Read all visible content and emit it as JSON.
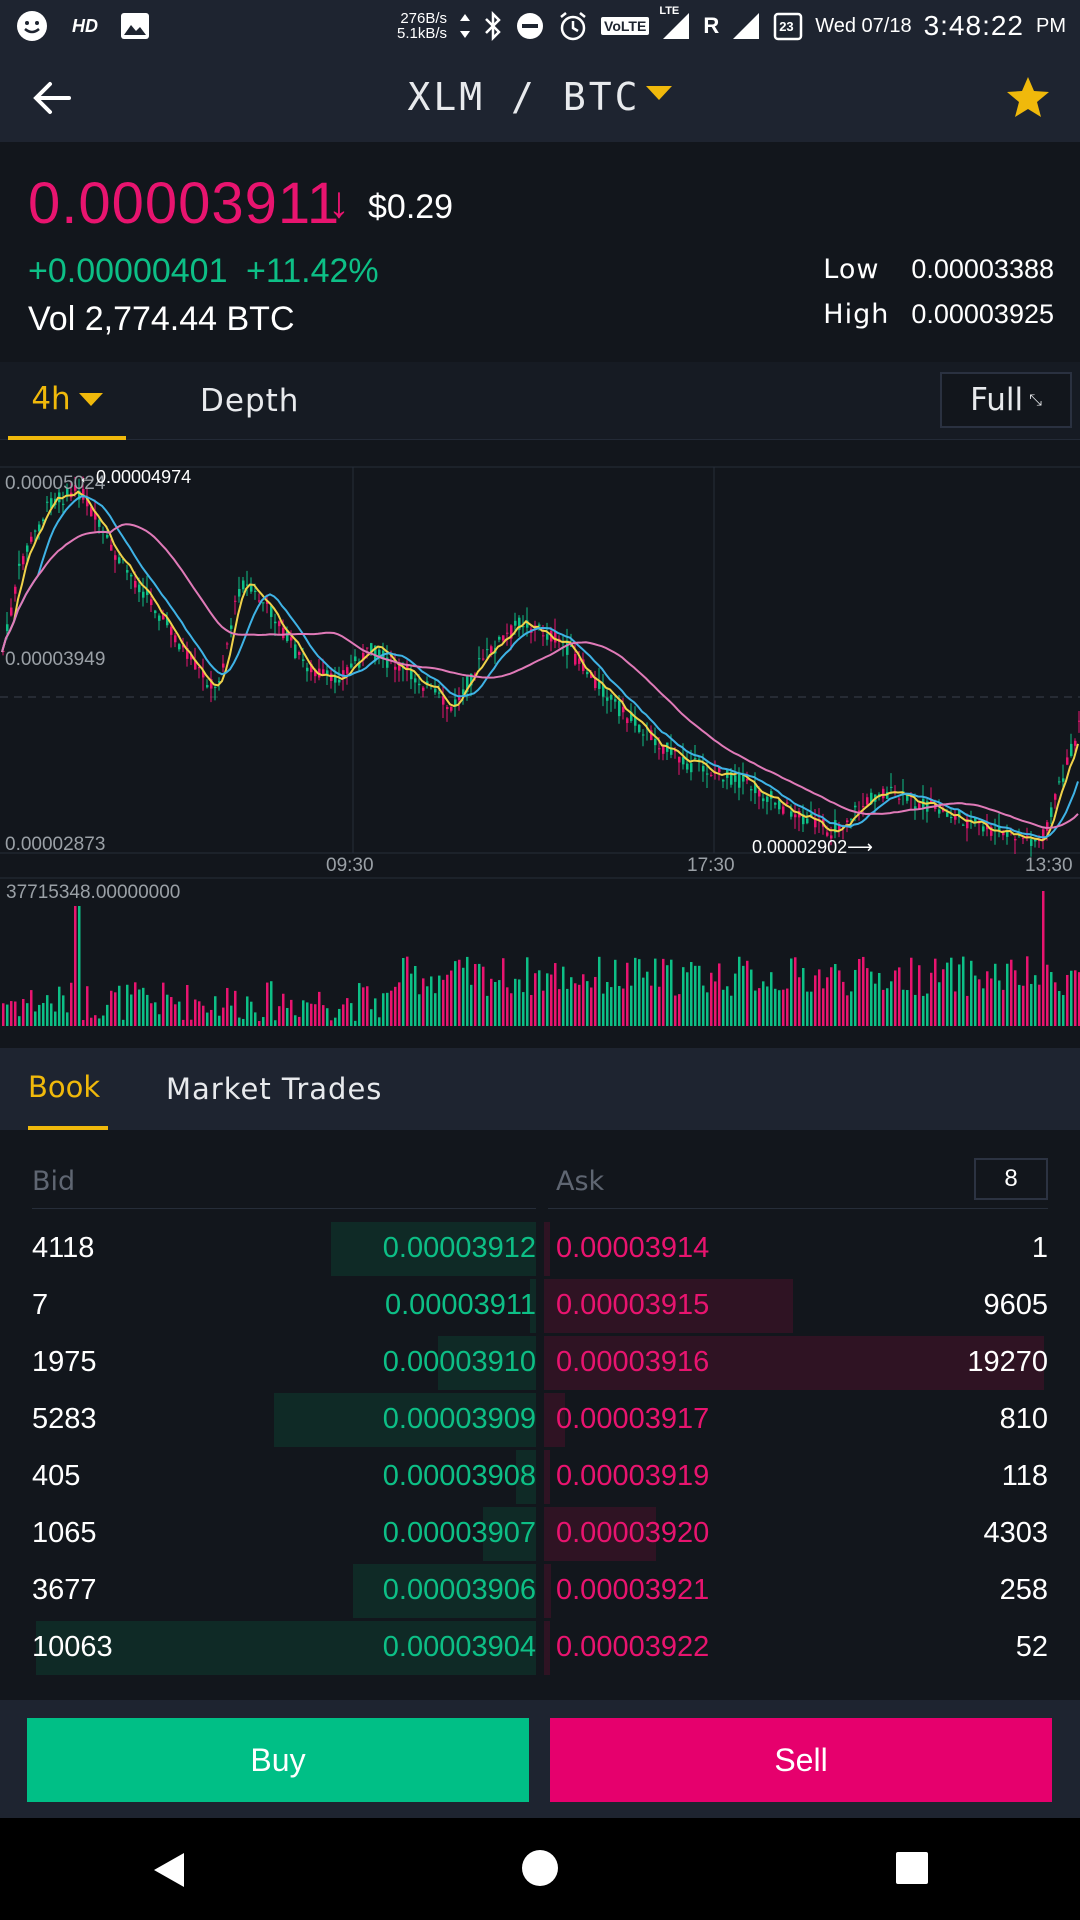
{
  "status_bar": {
    "hd_label": "HD",
    "net_up": "276B/s",
    "net_down": "5.1kB/s",
    "volte": "VoLTE",
    "lte": "LTE",
    "roaming": "R",
    "calendar_day": "23",
    "date": "Wed 07/18",
    "time": "3:48:22",
    "ampm": "PM"
  },
  "header": {
    "pair": "XLM / BTC",
    "favorite": true,
    "icons": [
      "arrow-left-icon",
      "chevron-down-icon",
      "star-icon"
    ]
  },
  "ticker": {
    "price": "0.00003911",
    "usd": "$0.29",
    "change": "+0.00000401",
    "change_pct": "+11.42%",
    "volume": "Vol 2,774.44 BTC",
    "low_label": "Low",
    "low": "0.00003388",
    "high_label": "High",
    "high": "0.00003925"
  },
  "chart_tabs": {
    "interval": "4h",
    "depth": "Depth",
    "full": "Full"
  },
  "chart": {
    "y_top": "0.00005024",
    "y_mid": "0.00003949",
    "y_bottom": "0.00002873",
    "max_marker": "0.00004974",
    "min_marker": "0.00002902",
    "x_labels": [
      "09:30",
      "17:30",
      "13:30"
    ],
    "volume_max": "37715348.00000000",
    "colors": {
      "up": "#0dbf86",
      "down": "#e8146f",
      "ma1": "#f0d24a",
      "ma2": "#3fb3e6",
      "ma3": "#e07ab8"
    }
  },
  "book_tabs": {
    "book": "Book",
    "trades": "Market Trades"
  },
  "book": {
    "bid_label": "Bid",
    "ask_label": "Ask",
    "depth": "8",
    "rows": [
      {
        "bid_qty": "4118",
        "bid_price": "0.00003912",
        "ask_price": "0.00003914",
        "ask_qty": "1"
      },
      {
        "bid_qty": "7",
        "bid_price": "0.00003911",
        "ask_price": "0.00003915",
        "ask_qty": "9605"
      },
      {
        "bid_qty": "1975",
        "bid_price": "0.00003910",
        "ask_price": "0.00003916",
        "ask_qty": "19270"
      },
      {
        "bid_qty": "5283",
        "bid_price": "0.00003909",
        "ask_price": "0.00003917",
        "ask_qty": "810"
      },
      {
        "bid_qty": "405",
        "bid_price": "0.00003908",
        "ask_price": "0.00003919",
        "ask_qty": "118"
      },
      {
        "bid_qty": "1065",
        "bid_price": "0.00003907",
        "ask_price": "0.00003920",
        "ask_qty": "4303"
      },
      {
        "bid_qty": "3677",
        "bid_price": "0.00003906",
        "ask_price": "0.00003921",
        "ask_qty": "258"
      },
      {
        "bid_qty": "10063",
        "bid_price": "0.00003904",
        "ask_price": "0.00003922",
        "ask_qty": "52"
      }
    ]
  },
  "actions": {
    "buy": "Buy",
    "sell": "Sell"
  }
}
